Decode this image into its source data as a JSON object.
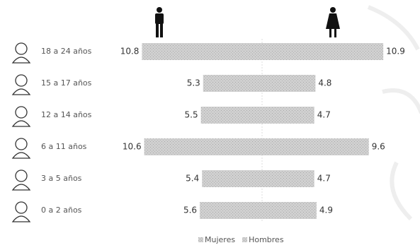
{
  "chart_data": {
    "type": "bar",
    "categories": [
      "18 a 24 años",
      "15 a 17 años",
      "12 a 14 años",
      "6 a 11 años",
      "3 a 5 años",
      "0 a 2 años"
    ],
    "series": [
      {
        "name": "Mujeres",
        "color": "#c9c9c9",
        "values": [
          10.9,
          4.8,
          4.7,
          9.6,
          4.7,
          4.9
        ]
      },
      {
        "name": "Hombres",
        "color": "#c9c9c9",
        "values": [
          10.8,
          5.3,
          5.5,
          10.6,
          5.4,
          5.6
        ]
      }
    ]
  }
}
